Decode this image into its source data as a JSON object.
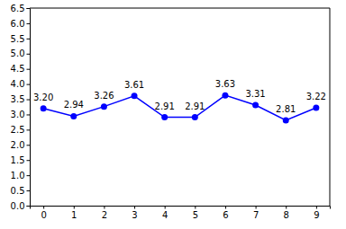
{
  "chart_data": {
    "type": "line",
    "x": [
      0,
      1,
      2,
      3,
      4,
      5,
      6,
      7,
      8,
      9
    ],
    "values": [
      3.2,
      2.94,
      3.26,
      3.61,
      2.91,
      2.91,
      3.63,
      3.31,
      2.81,
      3.22
    ],
    "value_labels": [
      "3.20",
      "2.94",
      "3.26",
      "3.61",
      "2.91",
      "2.91",
      "3.63",
      "3.31",
      "2.81",
      "3.22"
    ],
    "color": "#0000ff",
    "marker": "o",
    "line_style": "solid",
    "data_labels": true,
    "grid": false,
    "xlim": [
      -0.45,
      9.45
    ],
    "xticks": [
      0,
      1,
      2,
      3,
      4,
      5,
      6,
      7,
      8,
      9
    ],
    "ylim": [
      0,
      6.5
    ],
    "yticks": [
      {
        "value": 0,
        "label": "0.0"
      },
      0.5,
      {
        "value": 1,
        "label": "1.0"
      },
      1.5,
      {
        "value": 2,
        "label": "2.0"
      },
      2.5,
      {
        "value": 3,
        "label": "3.0"
      },
      3.5,
      {
        "value": 4,
        "label": "4.0"
      },
      4.5,
      {
        "value": 5,
        "label": "5.0"
      },
      5.5,
      {
        "value": 6,
        "label": "6.0"
      },
      6.5
    ]
  }
}
